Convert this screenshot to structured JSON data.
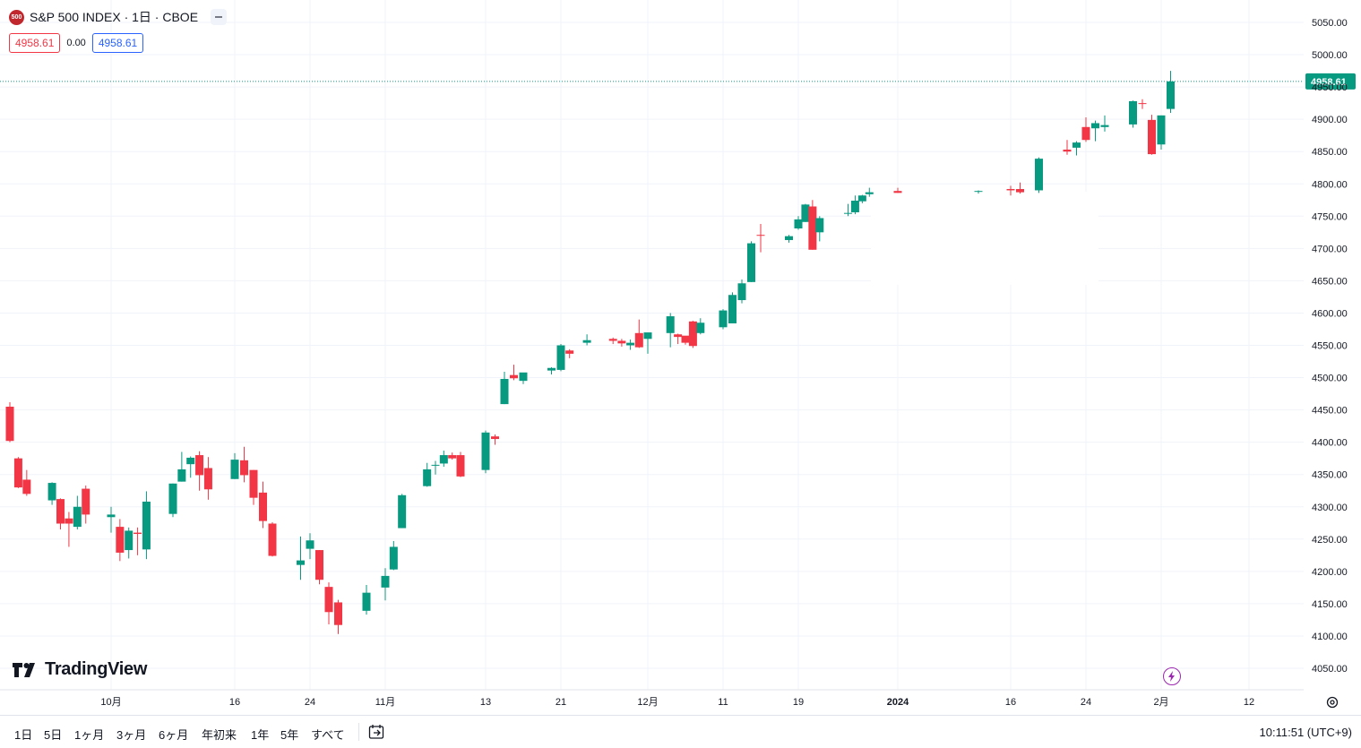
{
  "header": {
    "badge": "500",
    "title": "S&P 500 INDEX · 1日 · CBOE",
    "bid": "4958.61",
    "spread": "0.00",
    "ask": "4958.61"
  },
  "colors": {
    "up": "#089981",
    "down": "#f23645",
    "grid": "#f0f3fa",
    "price_line": "#089981"
  },
  "chart_data": {
    "type": "candlestick",
    "symbol": "S&P 500 INDEX",
    "interval": "1日",
    "exchange": "CBOE",
    "y_axis_labels": [
      "5050.00",
      "5000.00",
      "4950.00",
      "4900.00",
      "4850.00",
      "4800.00",
      "4750.00",
      "4700.00",
      "4650.00",
      "4600.00",
      "4550.00",
      "4500.00",
      "4450.00",
      "4400.00",
      "4350.00",
      "4300.00",
      "4250.00",
      "4200.00",
      "4150.00",
      "4100.00",
      "4050.00"
    ],
    "ylim": [
      4020,
      5075
    ],
    "x_axis_labels": [
      "10月",
      "16",
      "24",
      "11月",
      "13",
      "21",
      "12月",
      "11",
      "19",
      "2024",
      "16",
      "24",
      "2月",
      "12"
    ],
    "last_price": "4958.61",
    "candles": [
      {
        "d": "2023-09-20",
        "o": 4455,
        "h": 4462,
        "l": 4400,
        "c": 4402
      },
      {
        "d": "2023-09-21",
        "o": 4375,
        "h": 4377,
        "l": 4329,
        "c": 4330
      },
      {
        "d": "2023-09-22",
        "o": 4342,
        "h": 4357,
        "l": 4317,
        "c": 4320
      },
      {
        "d": "2023-09-25",
        "o": 4310,
        "h": 4338,
        "l": 4303,
        "c": 4337
      },
      {
        "d": "2023-09-26",
        "o": 4312,
        "h": 4313,
        "l": 4265,
        "c": 4274
      },
      {
        "d": "2023-09-27",
        "o": 4282,
        "h": 4292,
        "l": 4238,
        "c": 4274
      },
      {
        "d": "2023-09-28",
        "o": 4269,
        "h": 4317,
        "l": 4265,
        "c": 4300
      },
      {
        "d": "2023-09-29",
        "o": 4328,
        "h": 4333,
        "l": 4274,
        "c": 4288
      },
      {
        "d": "2023-10-02",
        "o": 4284,
        "h": 4300,
        "l": 4260,
        "c": 4288
      },
      {
        "d": "2023-10-03",
        "o": 4269,
        "h": 4281,
        "l": 4216,
        "c": 4229
      },
      {
        "d": "2023-10-04",
        "o": 4233,
        "h": 4268,
        "l": 4220,
        "c": 4263
      },
      {
        "d": "2023-10-05",
        "o": 4260,
        "h": 4268,
        "l": 4225,
        "c": 4258
      },
      {
        "d": "2023-10-06",
        "o": 4234,
        "h": 4324,
        "l": 4219,
        "c": 4308
      },
      {
        "d": "2023-10-09",
        "o": 4289,
        "h": 4336,
        "l": 4284,
        "c": 4336
      },
      {
        "d": "2023-10-10",
        "o": 4339,
        "h": 4385,
        "l": 4339,
        "c": 4358
      },
      {
        "d": "2023-10-11",
        "o": 4366,
        "h": 4378,
        "l": 4345,
        "c": 4376
      },
      {
        "d": "2023-10-12",
        "o": 4380,
        "h": 4386,
        "l": 4325,
        "c": 4349
      },
      {
        "d": "2023-10-13",
        "o": 4360,
        "h": 4377,
        "l": 4311,
        "c": 4327
      },
      {
        "d": "2023-10-16",
        "o": 4343,
        "h": 4383,
        "l": 4343,
        "c": 4373
      },
      {
        "d": "2023-10-17",
        "o": 4372,
        "h": 4393,
        "l": 4338,
        "c": 4349
      },
      {
        "d": "2023-10-18",
        "o": 4357,
        "h": 4357,
        "l": 4303,
        "c": 4314
      },
      {
        "d": "2023-10-19",
        "o": 4322,
        "h": 4339,
        "l": 4267,
        "c": 4278
      },
      {
        "d": "2023-10-20",
        "o": 4274,
        "h": 4276,
        "l": 4223,
        "c": 4224
      },
      {
        "d": "2023-10-23",
        "o": 4210,
        "h": 4254,
        "l": 4187,
        "c": 4217
      },
      {
        "d": "2023-10-24",
        "o": 4235,
        "h": 4259,
        "l": 4219,
        "c": 4248
      },
      {
        "d": "2023-10-25",
        "o": 4233,
        "h": 4233,
        "l": 4180,
        "c": 4187
      },
      {
        "d": "2023-10-26",
        "o": 4176,
        "h": 4183,
        "l": 4118,
        "c": 4137
      },
      {
        "d": "2023-10-27",
        "o": 4152,
        "h": 4156,
        "l": 4103,
        "c": 4117
      },
      {
        "d": "2023-10-30",
        "o": 4139,
        "h": 4179,
        "l": 4133,
        "c": 4167
      },
      {
        "d": "2023-11-01",
        "o": 4175,
        "h": 4205,
        "l": 4155,
        "c": 4193
      },
      {
        "d": "2023-11-02",
        "o": 4203,
        "h": 4247,
        "l": 4202,
        "c": 4238
      },
      {
        "d": "2023-11-03",
        "o": 4267,
        "h": 4320,
        "l": 4267,
        "c": 4318
      },
      {
        "d": "2023-11-06",
        "o": 4332,
        "h": 4368,
        "l": 4331,
        "c": 4358
      },
      {
        "d": "2023-11-07",
        "o": 4364,
        "h": 4371,
        "l": 4350,
        "c": 4365
      },
      {
        "d": "2023-11-08",
        "o": 4367,
        "h": 4387,
        "l": 4362,
        "c": 4380
      },
      {
        "d": "2023-11-09",
        "o": 4380,
        "h": 4384,
        "l": 4373,
        "c": 4375
      },
      {
        "d": "2023-11-10",
        "o": 4380,
        "h": 4385,
        "l": 4346,
        "c": 4347
      },
      {
        "d": "2023-11-13",
        "o": 4357,
        "h": 4418,
        "l": 4352,
        "c": 4415
      },
      {
        "d": "2023-11-14",
        "o": 4409,
        "h": 4412,
        "l": 4396,
        "c": 4405
      },
      {
        "d": "2023-11-15",
        "o": 4459,
        "h": 4509,
        "l": 4459,
        "c": 4498
      },
      {
        "d": "2023-11-16",
        "o": 4504,
        "h": 4520,
        "l": 4496,
        "c": 4499
      },
      {
        "d": "2023-11-17",
        "o": 4495,
        "h": 4507,
        "l": 4490,
        "c": 4508
      },
      {
        "d": "2023-11-20",
        "o": 4511,
        "h": 4516,
        "l": 4505,
        "c": 4515
      },
      {
        "d": "2023-11-21",
        "o": 4512,
        "h": 4552,
        "l": 4510,
        "c": 4550
      },
      {
        "d": "2023-11-22",
        "o": 4542,
        "h": 4544,
        "l": 4530,
        "c": 4537
      },
      {
        "d": "2023-11-24",
        "o": 4554,
        "h": 4567,
        "l": 4550,
        "c": 4558
      },
      {
        "d": "2023-11-27",
        "o": 4560,
        "h": 4562,
        "l": 4552,
        "c": 4557
      },
      {
        "d": "2023-11-28",
        "o": 4557,
        "h": 4560,
        "l": 4548,
        "c": 4553
      },
      {
        "d": "2023-11-29",
        "o": 4550,
        "h": 4559,
        "l": 4543,
        "c": 4554
      },
      {
        "d": "2023-11-30",
        "o": 4569,
        "h": 4590,
        "l": 4546,
        "c": 4547
      },
      {
        "d": "2023-12-01",
        "o": 4560,
        "h": 4566,
        "l": 4537,
        "c": 4570
      },
      {
        "d": "2023-12-04",
        "o": 4569,
        "h": 4600,
        "l": 4547,
        "c": 4595
      },
      {
        "d": "2023-12-05",
        "o": 4567,
        "h": 4568,
        "l": 4552,
        "c": 4563
      },
      {
        "d": "2023-12-06",
        "o": 4565,
        "h": 4562,
        "l": 4551,
        "c": 4554
      },
      {
        "d": "2023-12-07",
        "o": 4587,
        "h": 4588,
        "l": 4546,
        "c": 4549
      },
      {
        "d": "2023-12-08",
        "o": 4569,
        "h": 4592,
        "l": 4567,
        "c": 4585
      },
      {
        "d": "2023-12-11",
        "o": 4578,
        "h": 4606,
        "l": 4575,
        "c": 4604
      },
      {
        "d": "2023-12-12",
        "o": 4584,
        "h": 4632,
        "l": 4584,
        "c": 4628
      },
      {
        "d": "2023-12-13",
        "o": 4620,
        "h": 4652,
        "l": 4615,
        "c": 4646
      },
      {
        "d": "2023-12-14",
        "o": 4648,
        "h": 4711,
        "l": 4648,
        "c": 4708
      },
      {
        "d": "2023-12-15",
        "o": 4721,
        "h": 4738,
        "l": 4694,
        "c": 4720
      },
      {
        "d": "2023-12-18",
        "o": 4713,
        "h": 4721,
        "l": 4709,
        "c": 4719
      },
      {
        "d": "2023-12-19",
        "o": 4731,
        "h": 4750,
        "l": 4729,
        "c": 4745
      },
      {
        "d": "2023-12-20",
        "o": 4741,
        "h": 4769,
        "l": 4741,
        "c": 4768
      },
      {
        "d": "2023-12-21",
        "o": 4765,
        "h": 4775,
        "l": 4698,
        "c": 4698
      },
      {
        "d": "2023-12-22",
        "o": 4725,
        "h": 4750,
        "l": 4711,
        "c": 4747
      },
      {
        "d": "2023-12-26",
        "o": 4754,
        "h": 4769,
        "l": 4750,
        "c": 4755
      },
      {
        "d": "2023-12-27",
        "o": 4756,
        "h": 4782,
        "l": 4753,
        "c": 4774
      },
      {
        "d": "2023-12-28",
        "o": 4773,
        "h": 4783,
        "l": 4770,
        "c": 4782
      },
      {
        "d": "2023-12-29",
        "o": 4784,
        "h": 4794,
        "l": 4780,
        "c": 4787
      },
      {
        "d": "2024-01-02",
        "o": 4789,
        "h": 4794,
        "l": 4786,
        "c": 4786
      },
      {
        "d": "2024-01-12",
        "o": 4789,
        "h": 4790,
        "l": 4785,
        "c": 4789
      },
      {
        "d": "2024-01-16",
        "o": 4792,
        "h": 4797,
        "l": 4782,
        "c": 4790
      },
      {
        "d": "2024-01-17",
        "o": 4792,
        "h": 4802,
        "l": 4785,
        "c": 4787
      },
      {
        "d": "2024-01-19",
        "o": 4790,
        "h": 4841,
        "l": 4786,
        "c": 4839
      },
      {
        "d": "2024-01-22",
        "o": 4853,
        "h": 4868,
        "l": 4845,
        "c": 4850
      },
      {
        "d": "2024-01-23",
        "o": 4856,
        "h": 4866,
        "l": 4844,
        "c": 4864
      },
      {
        "d": "2024-01-24",
        "o": 4888,
        "h": 4903,
        "l": 4865,
        "c": 4868
      },
      {
        "d": "2024-01-25",
        "o": 4886,
        "h": 4898,
        "l": 4866,
        "c": 4894
      },
      {
        "d": "2024-01-26",
        "o": 4888,
        "h": 4906,
        "l": 4881,
        "c": 4891
      },
      {
        "d": "2024-01-29",
        "o": 4892,
        "h": 4929,
        "l": 4887,
        "c": 4928
      },
      {
        "d": "2024-01-30",
        "o": 4925,
        "h": 4931,
        "l": 4916,
        "c": 4924
      },
      {
        "d": "2024-01-31",
        "o": 4899,
        "h": 4907,
        "l": 4845,
        "c": 4846
      },
      {
        "d": "2024-02-01",
        "o": 4861,
        "h": 4906,
        "l": 4853,
        "c": 4906
      },
      {
        "d": "2024-02-02",
        "o": 4916,
        "h": 4975,
        "l": 4910,
        "c": 4958.61
      }
    ]
  },
  "logo": {
    "text": "TradingView"
  },
  "bottom_bar": {
    "ranges": [
      "1日",
      "5日",
      "1ヶ月",
      "3ヶ月",
      "6ヶ月",
      "年初来",
      "1年",
      "5年",
      "すべて"
    ],
    "clock": "10:11:51 (UTC+9)"
  },
  "icons": {
    "calendar": "calendar-goto-icon",
    "settings": "gear-icon",
    "alert": "lightning-icon"
  }
}
